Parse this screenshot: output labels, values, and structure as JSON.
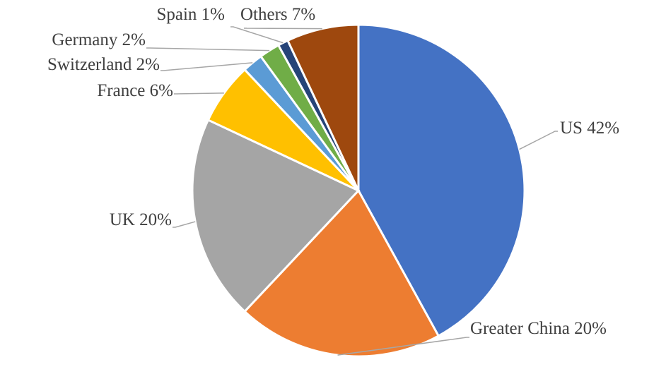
{
  "chart_data": {
    "type": "pie",
    "categories": [
      "US",
      "Greater China",
      "UK",
      "France",
      "Switzerland",
      "Germany",
      "Spain",
      "Others"
    ],
    "values": [
      42,
      20,
      20,
      6,
      2,
      2,
      1,
      7
    ],
    "value_labels": [
      "42%",
      "20%",
      "20%",
      "6%",
      "2%",
      "2%",
      "1%",
      "7%"
    ],
    "colors": [
      "#4472c4",
      "#ed7d31",
      "#a5a5a5",
      "#ffc000",
      "#5b9bd5",
      "#70ad47",
      "#264478",
      "#9e480e"
    ]
  }
}
